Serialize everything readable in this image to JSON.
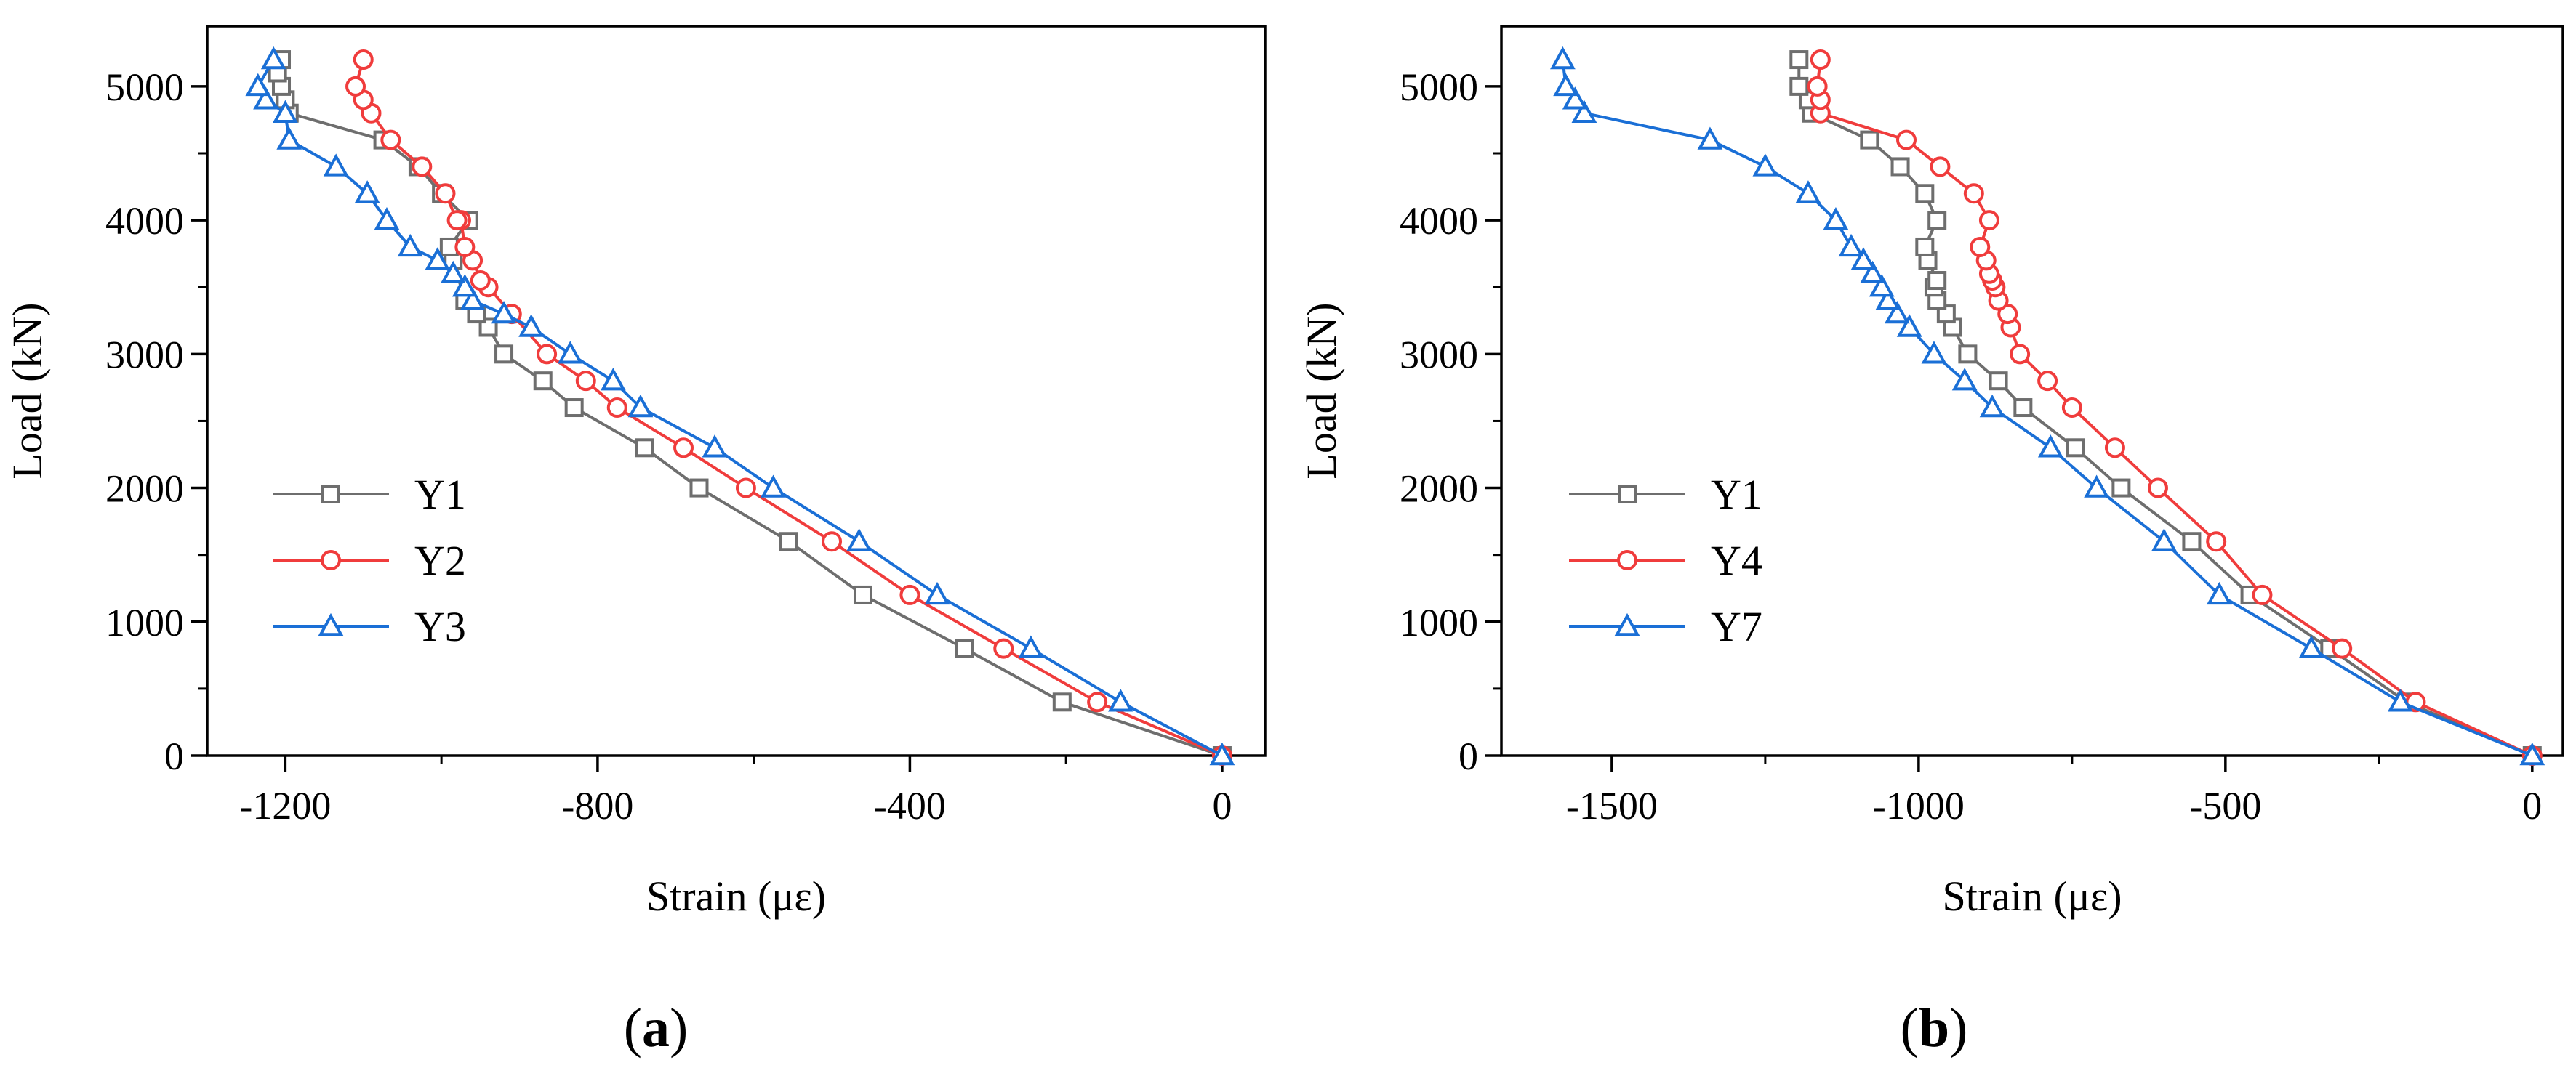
{
  "chart_data": [
    {
      "type": "line",
      "panel_caption": {
        "open": "(",
        "letter": "a",
        "close": ")"
      },
      "xlabel": "Strain (με)",
      "ylabel": "Load (kN)",
      "xlim": [
        -1300,
        55
      ],
      "ylim": [
        0,
        5450
      ],
      "xticks": [
        -1200,
        -800,
        -400,
        0
      ],
      "xtick_labels": [
        "-1200",
        "-800",
        "-400",
        "0"
      ],
      "yticks": [
        0,
        1000,
        2000,
        3000,
        4000,
        5000
      ],
      "ytick_labels": [
        "0",
        "1000",
        "2000",
        "3000",
        "4000",
        "5000"
      ],
      "legend_position": "left-middle",
      "grid": false,
      "series": [
        {
          "name": "Y1",
          "color": "#6e6e6e",
          "marker": "square",
          "x": [
            0,
            -205,
            -330,
            -460,
            -555,
            -670,
            -740,
            -830,
            -870,
            -920,
            -940,
            -955,
            -970,
            -985,
            -990,
            -965,
            -1000,
            -1030,
            -1075,
            -1195,
            -1200,
            -1205,
            -1210,
            -1205
          ],
          "y": [
            0,
            400,
            800,
            1200,
            1600,
            2000,
            2300,
            2600,
            2800,
            3000,
            3200,
            3300,
            3400,
            3700,
            3800,
            4000,
            4200,
            4400,
            4600,
            4800,
            4900,
            5000,
            5100,
            5200
          ]
        },
        {
          "name": "Y2",
          "color": "#f03c3c",
          "marker": "circle",
          "x": [
            0,
            -160,
            -280,
            -400,
            -500,
            -610,
            -690,
            -775,
            -815,
            -865,
            -910,
            -940,
            -950,
            -960,
            -970,
            -975,
            -980,
            -995,
            -1025,
            -1065,
            -1090,
            -1100,
            -1110,
            -1100
          ],
          "y": [
            0,
            400,
            800,
            1200,
            1600,
            2000,
            2300,
            2600,
            2800,
            3000,
            3300,
            3500,
            3550,
            3700,
            3800,
            4000,
            4000,
            4200,
            4400,
            4600,
            4800,
            4900,
            5000,
            5200
          ]
        },
        {
          "name": "Y3",
          "color": "#1a6fd6",
          "marker": "triangle",
          "x": [
            0,
            -130,
            -245,
            -365,
            -465,
            -575,
            -650,
            -745,
            -780,
            -835,
            -885,
            -920,
            -960,
            -970,
            -985,
            -1005,
            -1040,
            -1070,
            -1095,
            -1135,
            -1195,
            -1200,
            -1225,
            -1235,
            -1215
          ],
          "y": [
            0,
            400,
            800,
            1200,
            1600,
            2000,
            2300,
            2600,
            2800,
            3000,
            3200,
            3300,
            3400,
            3500,
            3600,
            3700,
            3800,
            4000,
            4200,
            4400,
            4600,
            4800,
            4900,
            5000,
            5200
          ]
        }
      ]
    },
    {
      "type": "line",
      "panel_caption": {
        "open": "(",
        "letter": "b",
        "close": ")"
      },
      "xlabel": "Strain (με)",
      "ylabel": "Load (kN)",
      "xlim": [
        -1680,
        50
      ],
      "ylim": [
        0,
        5450
      ],
      "xticks": [
        -1500,
        -1000,
        -500,
        0
      ],
      "xtick_labels": [
        "-1500",
        "-1000",
        "-500",
        "0"
      ],
      "yticks": [
        0,
        1000,
        2000,
        3000,
        4000,
        5000
      ],
      "ytick_labels": [
        "0",
        "1000",
        "2000",
        "3000",
        "4000",
        "5000"
      ],
      "legend_position": "left-middle",
      "grid": false,
      "series": [
        {
          "name": "Y1",
          "color": "#6e6e6e",
          "marker": "square",
          "x": [
            0,
            -205,
            -330,
            -460,
            -555,
            -670,
            -745,
            -830,
            -870,
            -920,
            -945,
            -955,
            -970,
            -975,
            -970,
            -985,
            -990,
            -970,
            -990,
            -1030,
            -1080,
            -1175,
            -1180,
            -1195,
            -1195
          ],
          "y": [
            0,
            400,
            800,
            1200,
            1600,
            2000,
            2300,
            2600,
            2800,
            3000,
            3200,
            3300,
            3400,
            3500,
            3550,
            3700,
            3800,
            4000,
            4200,
            4400,
            4600,
            4800,
            4900,
            5000,
            5200
          ]
        },
        {
          "name": "Y4",
          "color": "#f03c3c",
          "marker": "circle",
          "x": [
            0,
            -190,
            -310,
            -440,
            -515,
            -610,
            -680,
            -750,
            -790,
            -835,
            -850,
            -855,
            -870,
            -875,
            -880,
            -885,
            -890,
            -900,
            -885,
            -910,
            -965,
            -1020,
            -1160,
            -1160,
            -1165,
            -1160
          ],
          "y": [
            0,
            400,
            800,
            1200,
            1600,
            2000,
            2300,
            2600,
            2800,
            3000,
            3200,
            3300,
            3400,
            3500,
            3550,
            3600,
            3700,
            3800,
            4000,
            4200,
            4400,
            4600,
            4800,
            4900,
            5000,
            5200
          ]
        },
        {
          "name": "Y7",
          "color": "#1a6fd6",
          "marker": "triangle",
          "x": [
            0,
            -215,
            -360,
            -510,
            -600,
            -710,
            -785,
            -880,
            -925,
            -975,
            -1015,
            -1035,
            -1050,
            -1060,
            -1075,
            -1090,
            -1110,
            -1135,
            -1180,
            -1250,
            -1340,
            -1545,
            -1560,
            -1575,
            -1580
          ],
          "y": [
            0,
            400,
            800,
            1200,
            1600,
            2000,
            2300,
            2600,
            2800,
            3000,
            3200,
            3300,
            3400,
            3500,
            3600,
            3700,
            3800,
            4000,
            4200,
            4400,
            4600,
            4800,
            4900,
            5000,
            5200
          ]
        }
      ]
    }
  ]
}
